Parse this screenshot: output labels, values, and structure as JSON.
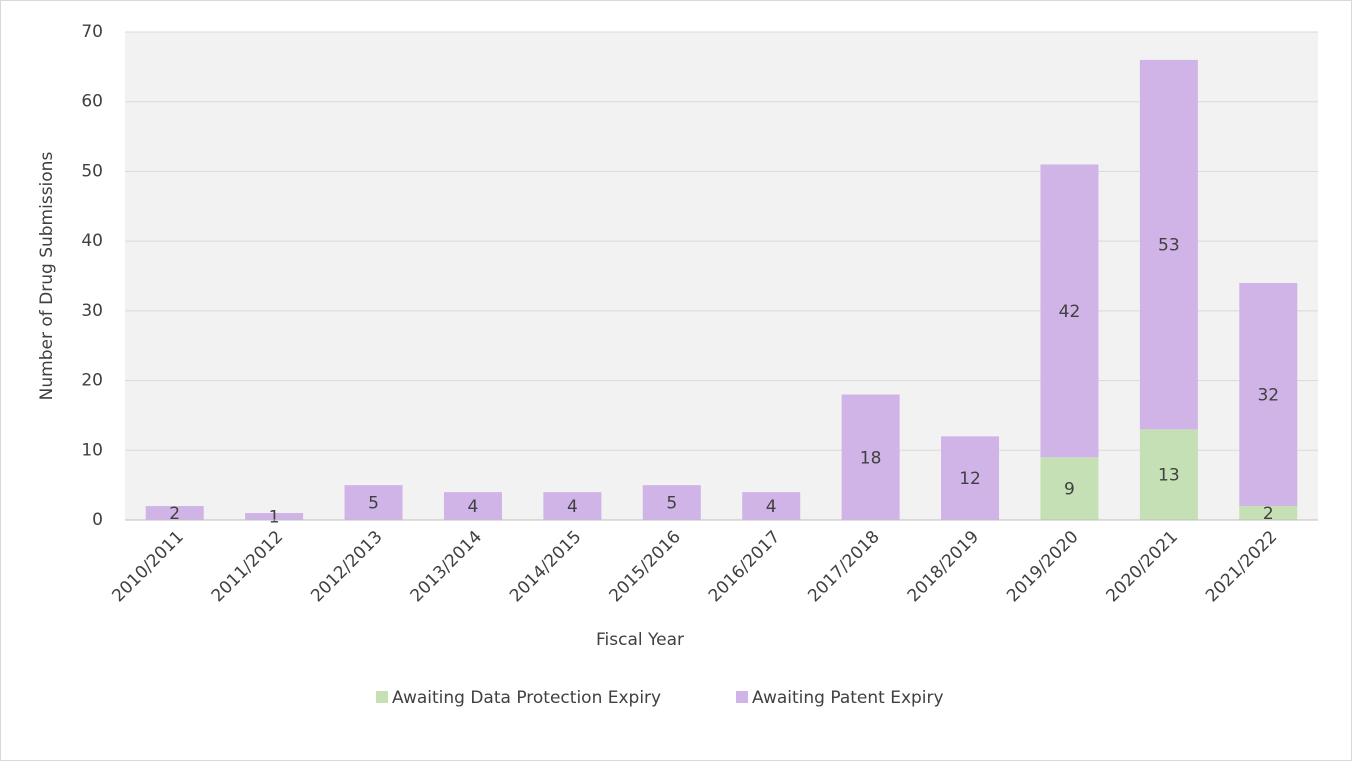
{
  "chart_data": {
    "type": "stacked_bar",
    "x_label": "Fiscal Year",
    "y_label": "Number of Drug Submissions",
    "categories": [
      "2010/2011",
      "2011/2012",
      "2012/2013",
      "2013/2014",
      "2014/2015",
      "2015/2016",
      "2016/2017",
      "2017/2018",
      "2018/2019",
      "2019/2020",
      "2020/2021",
      "2021/2022"
    ],
    "series": [
      {
        "name": "Awaiting Data Protection Expiry",
        "color": "#c5e0b4",
        "values": [
          null,
          null,
          null,
          null,
          null,
          null,
          null,
          null,
          null,
          9,
          13,
          2
        ]
      },
      {
        "name": "Awaiting Patent Expiry",
        "color": "#d0b4e8",
        "values": [
          2,
          1,
          5,
          4,
          4,
          5,
          4,
          18,
          12,
          42,
          53,
          32
        ]
      }
    ],
    "ylim": [
      0,
      70
    ],
    "yticks": [
      0,
      10,
      20,
      30,
      40,
      50,
      60,
      70
    ],
    "grid": true,
    "legend": "bottom"
  }
}
